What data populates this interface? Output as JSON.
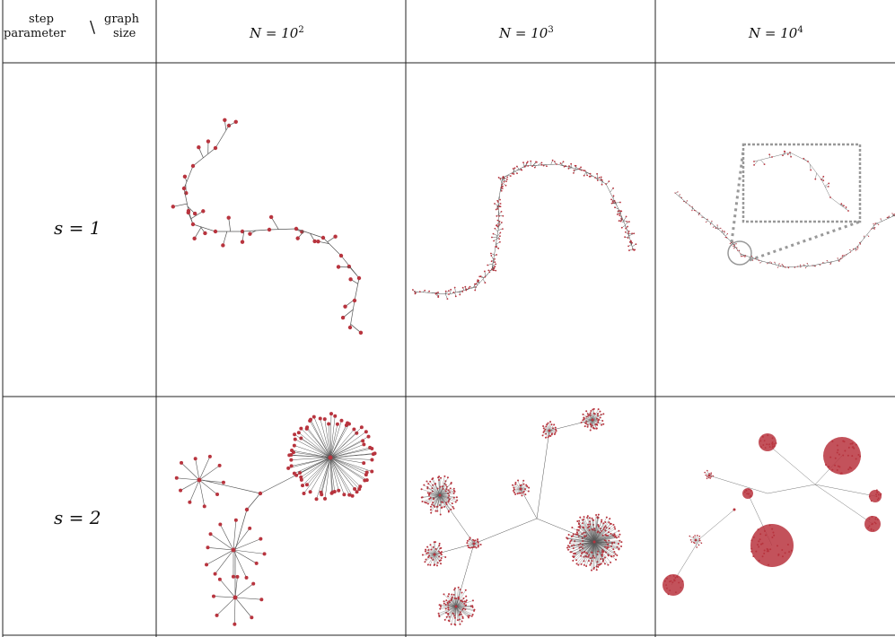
{
  "corner": {
    "top_left": "step",
    "bottom_left": "parameter",
    "separator": "\\",
    "top_right": "graph",
    "bottom_right": "size"
  },
  "columns": [
    {
      "label_base": "N = 10",
      "exponent": "2"
    },
    {
      "label_base": "N = 10",
      "exponent": "3"
    },
    {
      "label_base": "N = 10",
      "exponent": "4"
    }
  ],
  "rows": [
    {
      "label": "s = 1"
    },
    {
      "label": "s = 2"
    }
  ],
  "colors": {
    "node": "#b8343e",
    "edge": "#555555",
    "grid": "#222222",
    "zoom": "#999999"
  }
}
